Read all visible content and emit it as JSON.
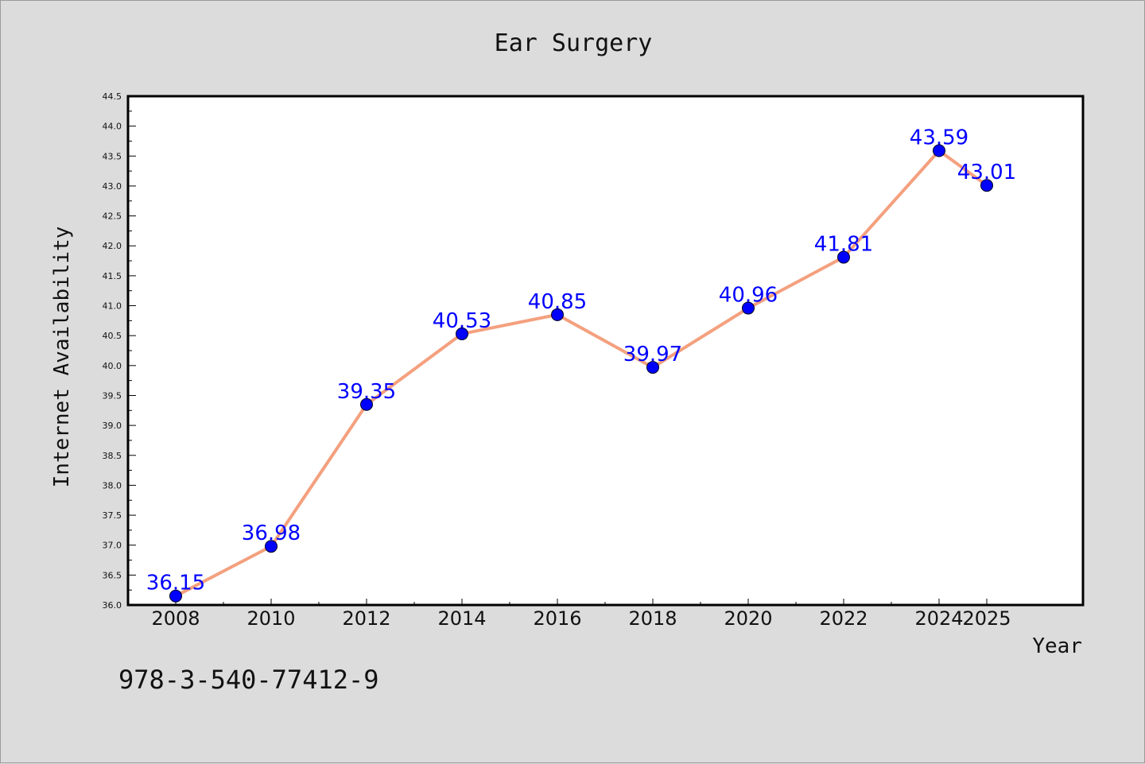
{
  "chart_data": {
    "type": "line",
    "title": "Ear Surgery",
    "xlabel": "Year",
    "ylabel": "Internet Availability",
    "x": [
      "2008",
      "2010",
      "2012",
      "2014",
      "2016",
      "2018",
      "2020",
      "2022",
      "2024",
      "2025"
    ],
    "series": [
      {
        "values": [
          36.15,
          36.98,
          39.35,
          40.53,
          40.85,
          39.97,
          40.96,
          41.81,
          43.59,
          43.01
        ],
        "labels": [
          "36.15",
          "36.98",
          "39.35",
          "40.53",
          "40.85",
          "39.97",
          "40.96",
          "41.81",
          "43.59",
          "43.01"
        ],
        "line_color": "#f4a07e",
        "marker_color": "#0000ff"
      }
    ],
    "ylim": [
      36.0,
      44.5
    ],
    "yticks": [
      "36.0",
      "36.5",
      "37.0",
      "37.5",
      "38.0",
      "38.5",
      "39.0",
      "39.5",
      "40.0",
      "40.5",
      "41.0",
      "41.5",
      "42.0",
      "42.5",
      "43.0",
      "43.5",
      "44.0",
      "44.5"
    ],
    "grid": false,
    "background": "#dcdcdc",
    "plot_background": "#ffffff"
  },
  "footer": {
    "text": "978-3-540-77412-9"
  }
}
